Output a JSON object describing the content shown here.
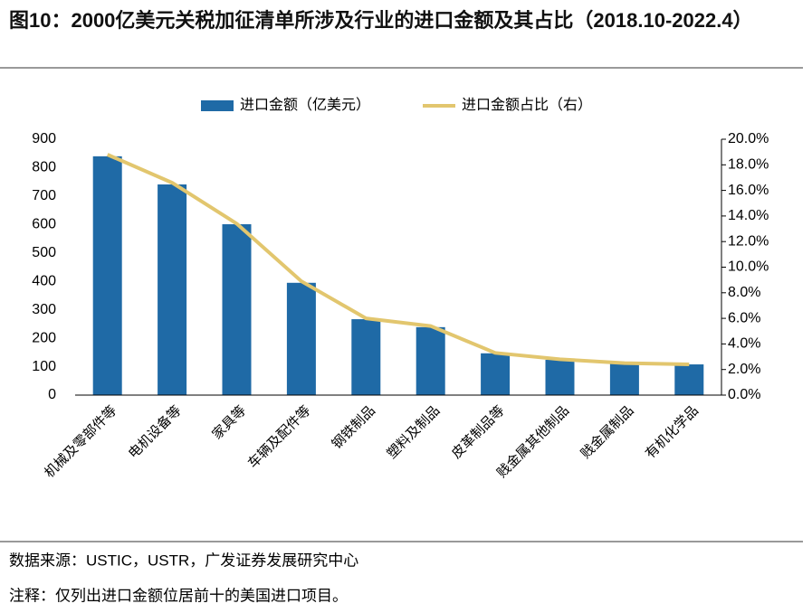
{
  "chart_data": {
    "type": "bar",
    "title": "图10：2000亿美元关税加征清单所涉及行业的进口金额及其占比（2018.10-2022.4）",
    "categories": [
      "机械及零部件等",
      "电机设备等",
      "家具等",
      "车辆及配件等",
      "钢铁制品",
      "塑料及制品",
      "皮革制品等",
      "贱金属其他制品",
      "贱金属制品",
      "有机化学品"
    ],
    "series": [
      {
        "name": "进口金额（亿美元）",
        "color": "#1f6aa6",
        "values": [
          840,
          741,
          601,
          395,
          267,
          239,
          147,
          124,
          111,
          108
        ]
      },
      {
        "name": "进口金额占比（右）",
        "color": "#e2c66e",
        "type": "line",
        "axis": "y2",
        "values": [
          18.8,
          16.6,
          13.4,
          8.9,
          6.0,
          5.4,
          3.3,
          2.8,
          2.5,
          2.4
        ]
      }
    ],
    "ylim": [
      0,
      900
    ],
    "yticks": [
      0,
      100,
      200,
      300,
      400,
      500,
      600,
      700,
      800,
      900
    ],
    "y2lim": [
      0,
      20
    ],
    "y2ticks": [
      {
        "value": 0,
        "label": "0.0%"
      },
      {
        "value": 2,
        "label": "2.0%"
      },
      {
        "value": 4,
        "label": "4.0%"
      },
      {
        "value": 6,
        "label": "6.0%"
      },
      {
        "value": 8,
        "label": "8.0%"
      },
      {
        "value": 10,
        "label": "10.0%"
      },
      {
        "value": 12,
        "label": "12.0%"
      },
      {
        "value": 14,
        "label": "14.0%"
      },
      {
        "value": 16,
        "label": "16.0%"
      },
      {
        "value": 18,
        "label": "18.0%"
      },
      {
        "value": 20,
        "label": "20.0%"
      }
    ],
    "legend": "top",
    "source": "数据来源：USTIC，USTR，广发证券发展研究中心",
    "note": "注释：仅列出进口金额位居前十的美国进口项目。"
  }
}
